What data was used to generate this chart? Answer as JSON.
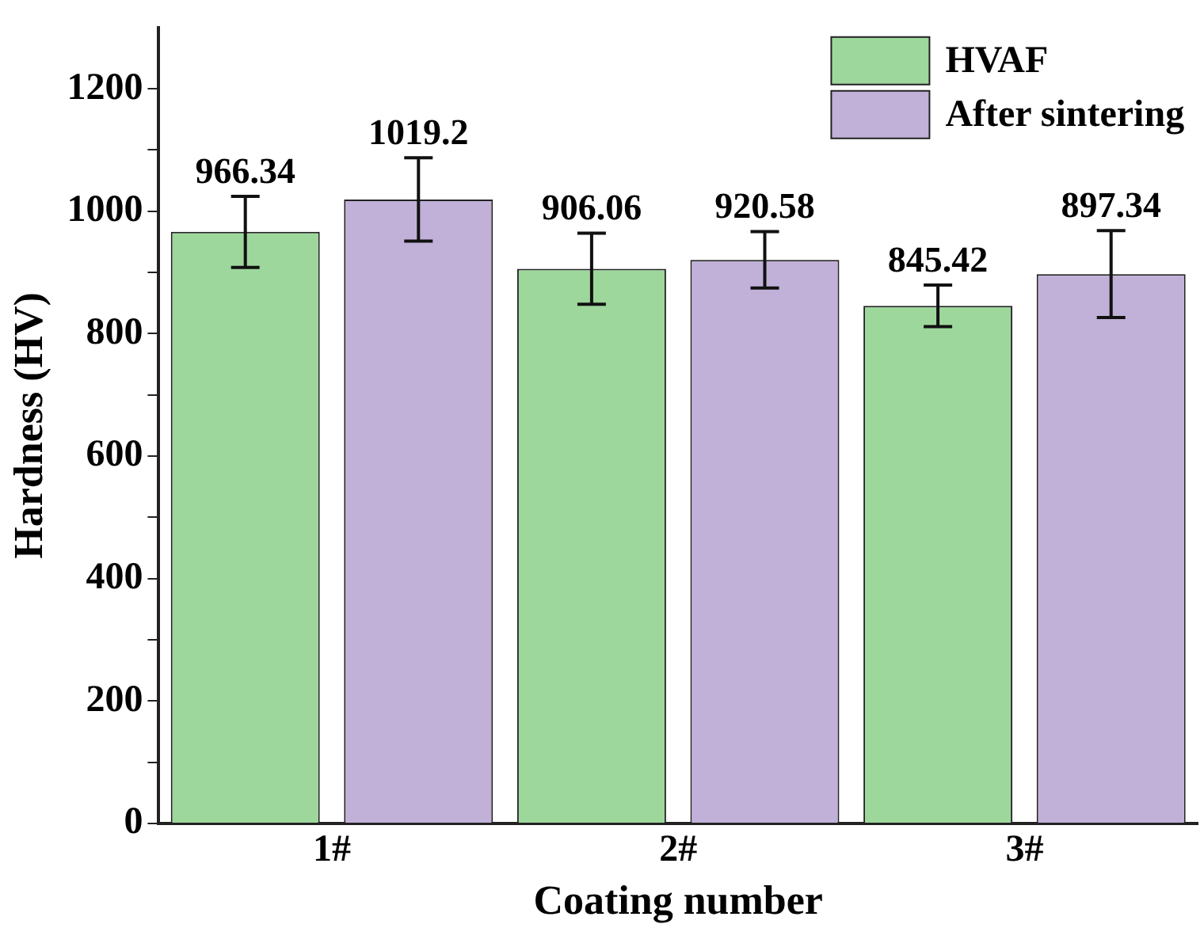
{
  "chart_data": {
    "type": "bar",
    "xlabel": "Coating number",
    "ylabel": "Hardness (HV)",
    "categories": [
      "1#",
      "2#",
      "3#"
    ],
    "series": [
      {
        "name": "HVAF",
        "color": "#9dd79c",
        "values": [
          966.34,
          906.06,
          845.42
        ],
        "errors": [
          58,
          58,
          34
        ]
      },
      {
        "name": "After sintering",
        "color": "#c1b1d8",
        "values": [
          1019.2,
          920.58,
          897.34
        ],
        "errors": [
          68,
          46,
          71
        ]
      }
    ],
    "ylim": [
      0,
      1300
    ],
    "yticks": [
      0,
      {
        "value": 100,
        "label": null
      },
      200,
      {
        "value": 300,
        "label": null
      },
      400,
      {
        "value": 500,
        "label": null
      },
      600,
      {
        "value": 700,
        "label": null
      },
      800,
      {
        "value": 900,
        "label": null
      },
      1000,
      {
        "value": 1100,
        "label": null
      },
      1200
    ],
    "data_labels": true,
    "legend": "top right",
    "grid": false
  }
}
